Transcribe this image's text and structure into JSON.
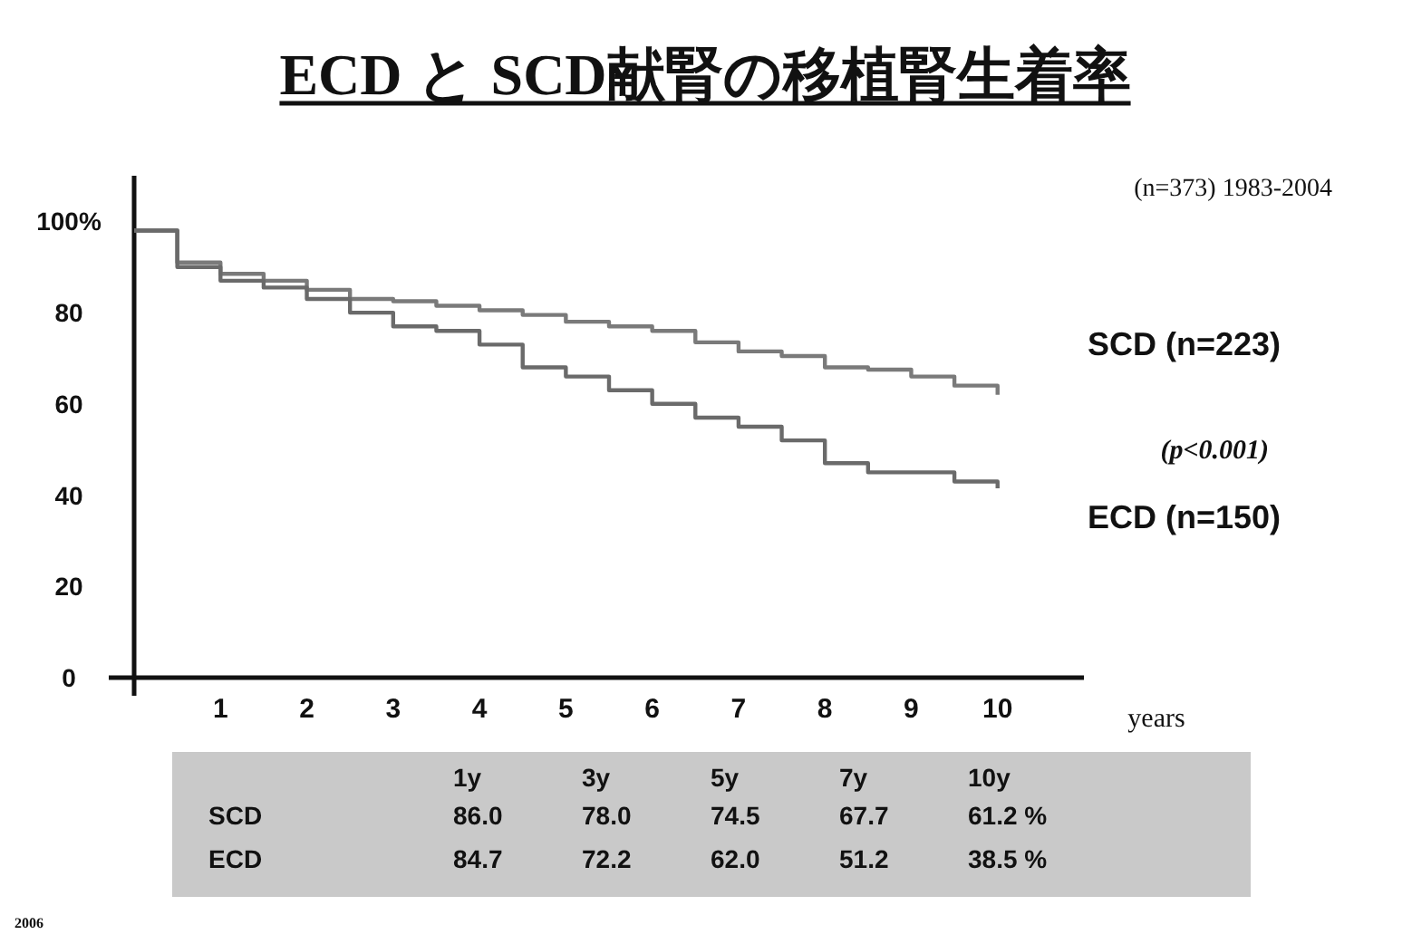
{
  "chart_data": [
    {
      "type": "step",
      "title": "ECD と SCD献腎の移植腎生着率",
      "xlabel": "years",
      "xlim": [
        0,
        11
      ],
      "xticks": [
        1,
        2,
        3,
        4,
        5,
        6,
        7,
        8,
        9,
        10
      ],
      "ylim": [
        0,
        110
      ],
      "yticks": [
        0,
        20,
        40,
        60,
        80,
        {
          "value": 100,
          "label": "100%"
        }
      ],
      "grid": false,
      "series": [
        {
          "name": "SCD (n=223)",
          "color": "#7a7a7a",
          "x": [
            0,
            0.5,
            1,
            1.5,
            2,
            2.5,
            3,
            3.5,
            4,
            4.5,
            5,
            5.5,
            6,
            6.5,
            7,
            7.5,
            8,
            8.5,
            9,
            9.5,
            10
          ],
          "values": [
            98,
            91,
            88.5,
            87,
            85,
            83,
            82.5,
            81.5,
            80.5,
            79.5,
            78,
            77,
            76,
            73.5,
            71.5,
            70.5,
            68,
            67.5,
            66,
            64,
            62
          ]
        },
        {
          "name": "ECD (n=150)",
          "color": "#6a6a6a",
          "x": [
            0,
            0.5,
            1,
            1.5,
            2,
            2.5,
            3,
            3.5,
            4,
            4.5,
            5,
            5.5,
            6,
            6.5,
            7,
            7.5,
            8,
            8.5,
            9,
            9.5,
            10
          ],
          "values": [
            98,
            90,
            87,
            85.5,
            83,
            80,
            77,
            76,
            73,
            68,
            66,
            63,
            60,
            57,
            55,
            52,
            47,
            45,
            45,
            43,
            41.5
          ]
        }
      ],
      "annotations": [
        "(n=373)  1983-2004",
        "(p<0.001)",
        "2006"
      ]
    },
    {
      "type": "other",
      "categories": [
        "1y",
        "3y",
        "5y",
        "7y",
        "10y"
      ],
      "y_categories": [
        "SCD",
        "ECD"
      ],
      "cell_labels": [
        [
          "86.0",
          "78.0",
          "74.5",
          "67.7",
          "61.2 %"
        ],
        [
          "84.7",
          "72.2",
          "62.0",
          "51.2",
          "38.5 %"
        ]
      ]
    }
  ]
}
